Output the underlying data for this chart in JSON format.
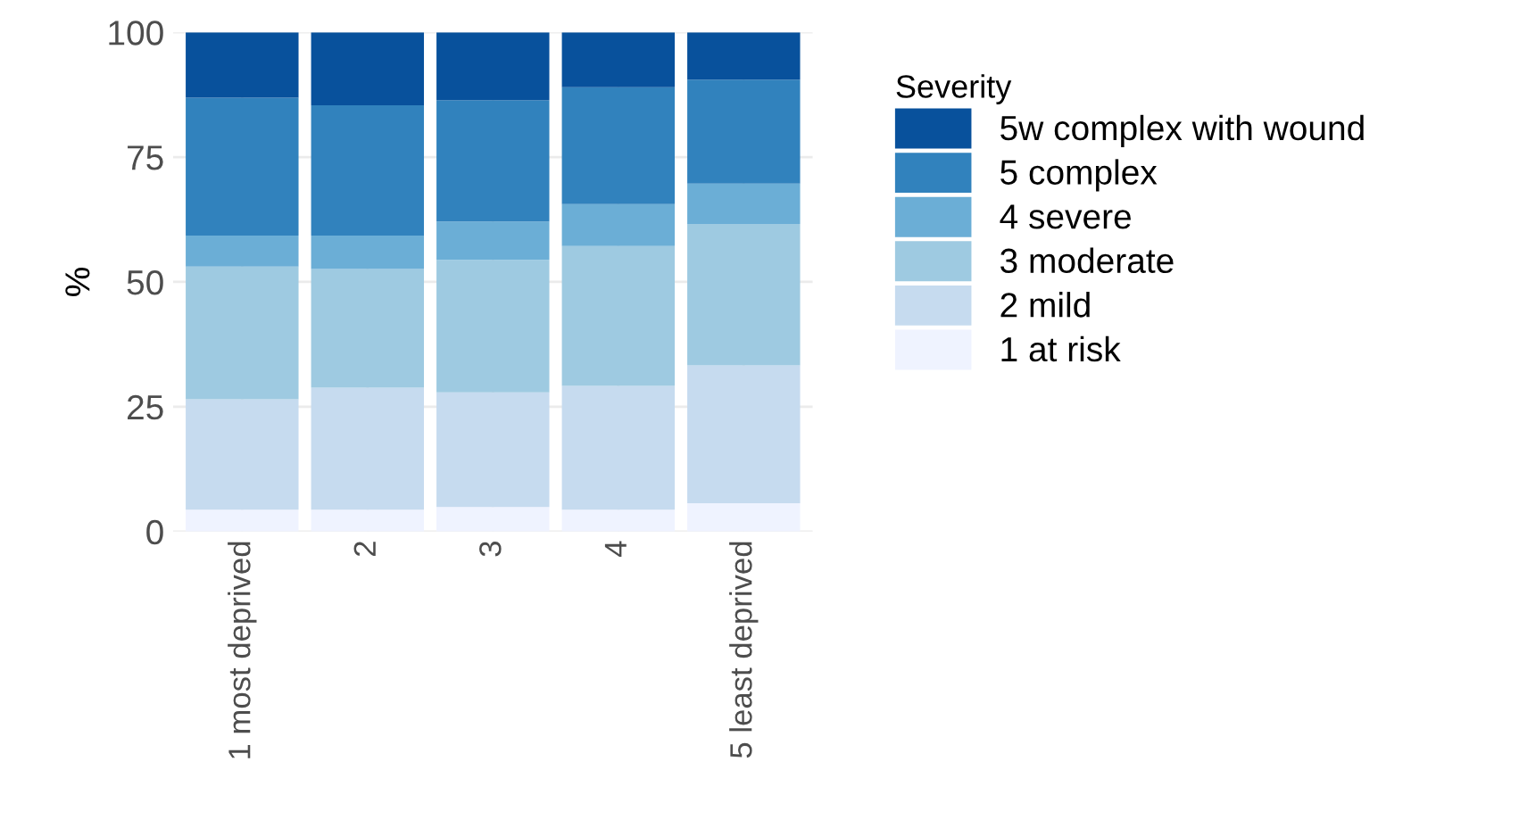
{
  "chart_data": {
    "type": "bar",
    "stacked": true,
    "ylabel": "%",
    "legend_title": "Severity",
    "categories": [
      "1 most deprived",
      "2",
      "3",
      "4",
      "5 least deprived"
    ],
    "series": [
      {
        "name": "1 at risk",
        "color": "#eff3ff",
        "values": [
          4.4,
          4.4,
          4.9,
          4.4,
          5.7
        ]
      },
      {
        "name": "2 mild",
        "color": "#c6dbef",
        "values": [
          22.1,
          24.4,
          23.0,
          24.8,
          27.6
        ]
      },
      {
        "name": "3 moderate",
        "color": "#9ecae1",
        "values": [
          26.6,
          23.8,
          26.5,
          28.0,
          28.3
        ]
      },
      {
        "name": "4 severe",
        "color": "#6baed6",
        "values": [
          6.2,
          6.7,
          7.7,
          8.4,
          8.1
        ]
      },
      {
        "name": "5 complex",
        "color": "#3182bd",
        "values": [
          27.6,
          26.1,
          24.3,
          23.4,
          20.8
        ]
      },
      {
        "name": "5w complex with wound",
        "color": "#08519c",
        "values": [
          13.1,
          14.6,
          13.6,
          11.0,
          9.5
        ]
      }
    ],
    "ylim": [
      0,
      100
    ],
    "yticks": [
      0,
      25,
      50,
      75,
      100
    ],
    "grid": true,
    "legend": "right"
  }
}
